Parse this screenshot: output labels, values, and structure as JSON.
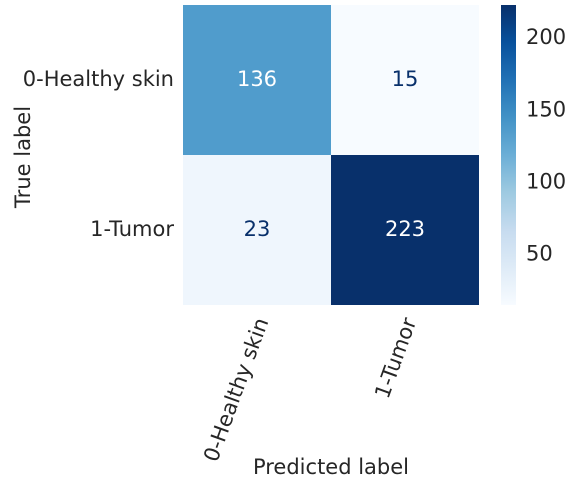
{
  "chart_data": {
    "type": "heatmap",
    "title": "",
    "xlabel": "Predicted label",
    "ylabel": "True label",
    "x_categories": [
      "0-Healthy skin",
      "1-Tumor"
    ],
    "y_categories": [
      "0-Healthy skin",
      "1-Tumor"
    ],
    "values": [
      [
        136,
        15
      ],
      [
        23,
        223
      ]
    ],
    "colormap": "Blues",
    "color_range": [
      15,
      223
    ],
    "colorbar_ticks": [
      50,
      100,
      150,
      200
    ],
    "cell_text_colors": [
      [
        "#ffffff",
        "#08306b"
      ],
      [
        "#08306b",
        "#ffffff"
      ]
    ],
    "xtick_rotation_deg": 70
  }
}
